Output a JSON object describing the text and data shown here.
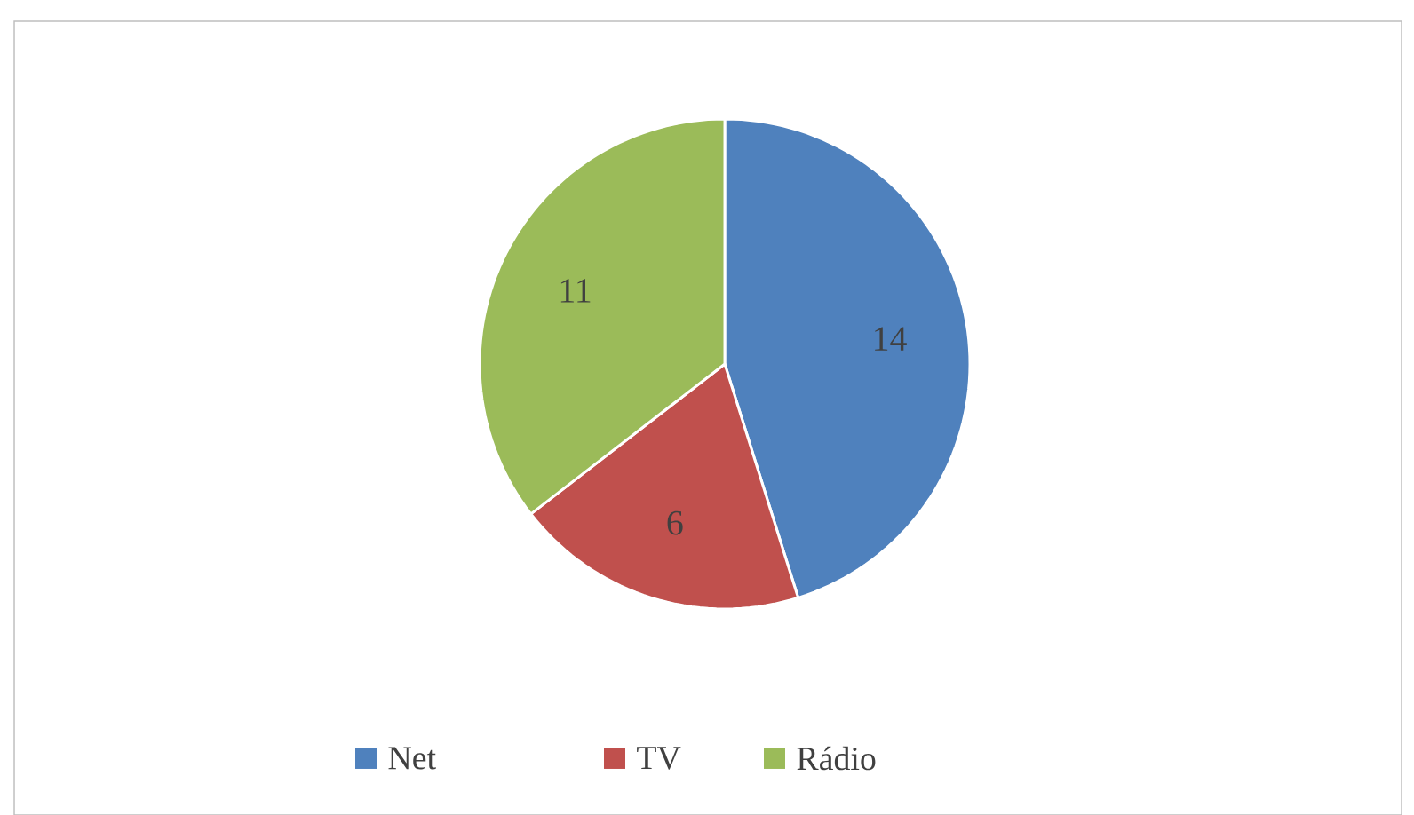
{
  "chart_data": {
    "type": "pie",
    "categories": [
      "Net",
      "TV",
      "Rádio"
    ],
    "values": [
      14,
      6,
      11
    ],
    "colors": [
      "#4f81bd",
      "#c0504d",
      "#9bbb59"
    ],
    "data_labels": true,
    "legend": "bottom"
  }
}
